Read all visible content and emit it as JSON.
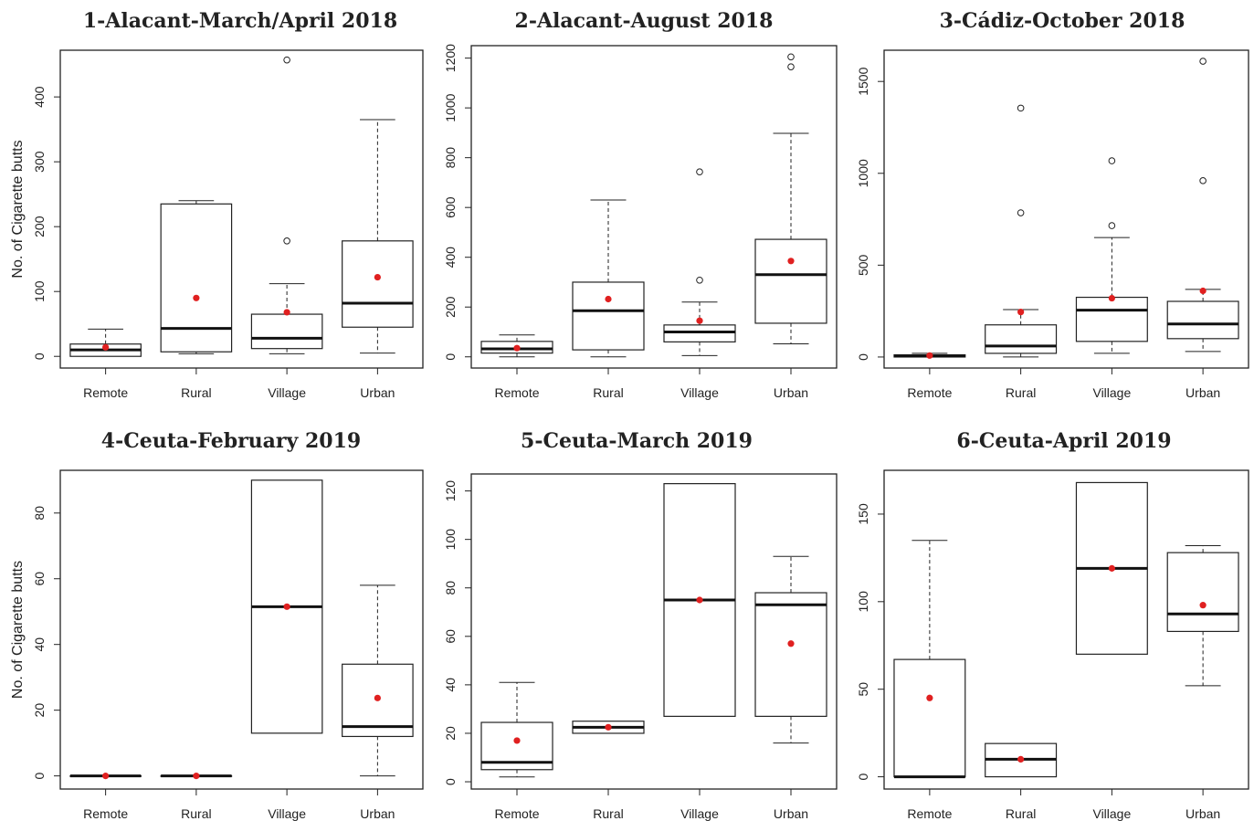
{
  "chart_data": [
    {
      "type": "boxplot",
      "title": "1-Alacant-March/April 2018",
      "ylabel": "No. of Cigarette butts",
      "categories": [
        "Remote",
        "Rural",
        "Village",
        "Urban"
      ],
      "ylim": [
        -18,
        472
      ],
      "yticks": [
        0,
        100,
        200,
        300,
        400
      ],
      "boxes": [
        {
          "whisker_low": 0,
          "q1": 0,
          "median": 10,
          "q3": 19,
          "whisker_high": 42,
          "mean": 14,
          "outliers": []
        },
        {
          "whisker_low": 4,
          "q1": 7,
          "median": 43,
          "q3": 235,
          "whisker_high": 240,
          "mean": 90,
          "outliers": []
        },
        {
          "whisker_low": 4,
          "q1": 12,
          "median": 28,
          "q3": 65,
          "whisker_high": 112,
          "mean": 68,
          "outliers": [
            178,
            457
          ]
        },
        {
          "whisker_low": 5,
          "q1": 45,
          "median": 82,
          "q3": 178,
          "whisker_high": 365,
          "mean": 122,
          "outliers": []
        }
      ]
    },
    {
      "type": "boxplot",
      "title": "2-Alacant-August 2018",
      "ylabel": "",
      "categories": [
        "Remote",
        "Rural",
        "Village",
        "Urban"
      ],
      "ylim": [
        -45,
        1250
      ],
      "yticks": [
        0,
        200,
        400,
        600,
        800,
        1000,
        1200
      ],
      "boxes": [
        {
          "whisker_low": 0,
          "q1": 15,
          "median": 32,
          "q3": 62,
          "whisker_high": 88,
          "mean": 35,
          "outliers": []
        },
        {
          "whisker_low": 0,
          "q1": 28,
          "median": 185,
          "q3": 300,
          "whisker_high": 630,
          "mean": 232,
          "outliers": []
        },
        {
          "whisker_low": 5,
          "q1": 60,
          "median": 100,
          "q3": 128,
          "whisker_high": 220,
          "mean": 145,
          "outliers": [
            308,
            743
          ]
        },
        {
          "whisker_low": 52,
          "q1": 135,
          "median": 330,
          "q3": 472,
          "whisker_high": 898,
          "mean": 385,
          "outliers": [
            1165,
            1205
          ]
        }
      ]
    },
    {
      "type": "boxplot",
      "title": "3-Cádiz-October 2018",
      "ylabel": "",
      "categories": [
        "Remote",
        "Rural",
        "Village",
        "Urban"
      ],
      "ylim": [
        -60,
        1670
      ],
      "yticks": [
        0,
        500,
        1000,
        1500
      ],
      "boxes": [
        {
          "whisker_low": 0,
          "q1": 0,
          "median": 5,
          "q3": 12,
          "whisker_high": 20,
          "mean": 8,
          "outliers": []
        },
        {
          "whisker_low": 0,
          "q1": 20,
          "median": 60,
          "q3": 175,
          "whisker_high": 258,
          "mean": 245,
          "outliers": [
            785,
            1355
          ]
        },
        {
          "whisker_low": 20,
          "q1": 85,
          "median": 255,
          "q3": 325,
          "whisker_high": 650,
          "mean": 320,
          "outliers": [
            715,
            1068
          ]
        },
        {
          "whisker_low": 30,
          "q1": 100,
          "median": 180,
          "q3": 303,
          "whisker_high": 368,
          "mean": 360,
          "outliers": [
            960,
            1610
          ]
        }
      ]
    },
    {
      "type": "boxplot",
      "title": "4-Ceuta-February 2019",
      "ylabel": "No. of Cigarette butts",
      "categories": [
        "Remote",
        "Rural",
        "Village",
        "Urban"
      ],
      "ylim": [
        -4,
        93
      ],
      "yticks": [
        0,
        20,
        40,
        60,
        80
      ],
      "boxes": [
        {
          "whisker_low": 0,
          "q1": 0,
          "median": 0,
          "q3": 0,
          "whisker_high": 0,
          "mean": 0,
          "outliers": []
        },
        {
          "whisker_low": 0,
          "q1": 0,
          "median": 0,
          "q3": 0,
          "whisker_high": 0,
          "mean": 0,
          "outliers": []
        },
        {
          "whisker_low": 13,
          "q1": 13,
          "median": 51.5,
          "q3": 90,
          "whisker_high": 90,
          "mean": 51.5,
          "outliers": []
        },
        {
          "whisker_low": 0,
          "q1": 12,
          "median": 15,
          "q3": 34,
          "whisker_high": 58,
          "mean": 23.7,
          "outliers": []
        }
      ]
    },
    {
      "type": "boxplot",
      "title": "5-Ceuta-March 2019",
      "ylabel": "",
      "categories": [
        "Remote",
        "Rural",
        "Village",
        "Urban"
      ],
      "ylim": [
        -3,
        127
      ],
      "yticks": [
        0,
        20,
        40,
        60,
        80,
        100,
        120
      ],
      "boxes": [
        {
          "whisker_low": 2,
          "q1": 5,
          "median": 8,
          "q3": 24.5,
          "whisker_high": 41,
          "mean": 17,
          "outliers": []
        },
        {
          "whisker_low": 20,
          "q1": 20,
          "median": 22.5,
          "q3": 25,
          "whisker_high": 25,
          "mean": 22.5,
          "outliers": []
        },
        {
          "whisker_low": 27,
          "q1": 27,
          "median": 75,
          "q3": 123,
          "whisker_high": 123,
          "mean": 75,
          "outliers": []
        },
        {
          "whisker_low": 16,
          "q1": 27,
          "median": 73,
          "q3": 78,
          "whisker_high": 93,
          "mean": 57,
          "outliers": []
        }
      ]
    },
    {
      "type": "boxplot",
      "title": "6-Ceuta-April 2019",
      "ylabel": "",
      "categories": [
        "Remote",
        "Rural",
        "Village",
        "Urban"
      ],
      "ylim": [
        -7,
        175
      ],
      "yticks": [
        0,
        50,
        100,
        150
      ],
      "boxes": [
        {
          "whisker_low": 0,
          "q1": 0,
          "median": 0,
          "q3": 67,
          "whisker_high": 135,
          "mean": 45,
          "outliers": []
        },
        {
          "whisker_low": 0,
          "q1": 0,
          "median": 10,
          "q3": 19,
          "whisker_high": 19,
          "mean": 10,
          "outliers": []
        },
        {
          "whisker_low": 70,
          "q1": 70,
          "median": 119,
          "q3": 168,
          "whisker_high": 168,
          "mean": 119,
          "outliers": []
        },
        {
          "whisker_low": 52,
          "q1": 83,
          "median": 93,
          "q3": 128,
          "whisker_high": 132,
          "mean": 98,
          "outliers": []
        }
      ]
    }
  ],
  "colors": {
    "mean_marker": "#e02020",
    "box_stroke": "#222222",
    "median": "#111111"
  }
}
